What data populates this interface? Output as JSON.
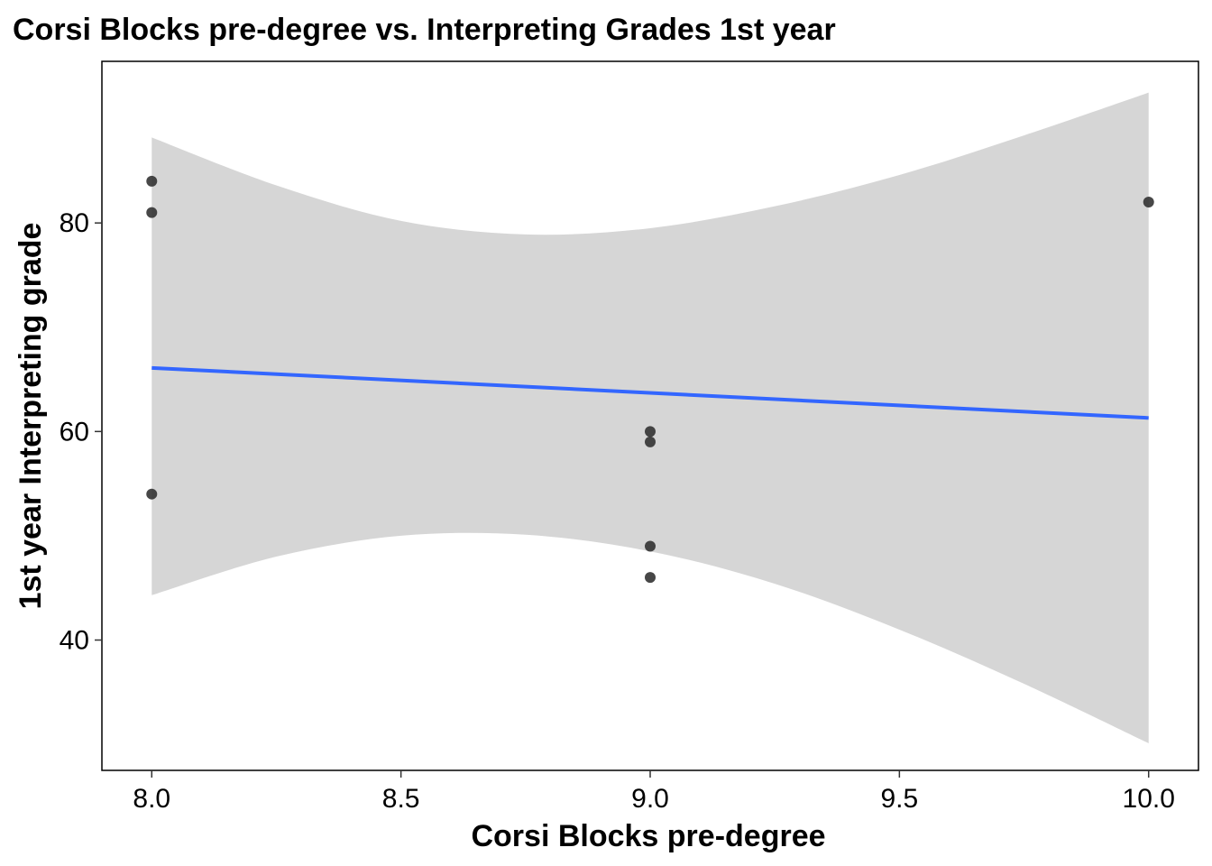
{
  "chart_data": {
    "type": "scatter",
    "title": "Corsi Blocks pre-degree vs. Interpreting Grades 1st year",
    "xlabel": "Corsi Blocks pre-degree",
    "ylabel": "1st year Interpreting grade",
    "xlim": [
      7.9,
      10.1
    ],
    "ylim": [
      27.5,
      95.5
    ],
    "x_ticks": [
      8.0,
      8.5,
      9.0,
      9.5,
      10.0
    ],
    "x_tick_labels": [
      "8.0",
      "8.5",
      "9.0",
      "9.5",
      "10.0"
    ],
    "y_ticks": [
      40,
      60,
      80
    ],
    "y_tick_labels": [
      "40",
      "60",
      "80"
    ],
    "grid": false,
    "legend": "none",
    "points": [
      {
        "x": 8,
        "y": 84
      },
      {
        "x": 8,
        "y": 81
      },
      {
        "x": 8,
        "y": 54
      },
      {
        "x": 9,
        "y": 60
      },
      {
        "x": 9,
        "y": 59
      },
      {
        "x": 9,
        "y": 49
      },
      {
        "x": 9,
        "y": 46
      },
      {
        "x": 10,
        "y": 82
      }
    ],
    "regression": {
      "method": "linear",
      "x": [
        8,
        10
      ],
      "y": [
        66.1,
        61.3
      ]
    },
    "confidence_band": {
      "x": [
        8.0,
        8.25,
        8.5,
        8.75,
        9.0,
        9.25,
        9.5,
        9.75,
        10.0
      ],
      "upper": [
        88.2,
        83.6,
        80.2,
        78.9,
        79.5,
        81.6,
        84.6,
        88.4,
        92.5
      ],
      "lower": [
        44.3,
        48.0,
        50.0,
        50.1,
        48.5,
        45.4,
        41.0,
        35.8,
        30.1
      ]
    },
    "colors": {
      "points": "#333333",
      "line": "#3366FF",
      "band": "#D6D6D6"
    }
  }
}
